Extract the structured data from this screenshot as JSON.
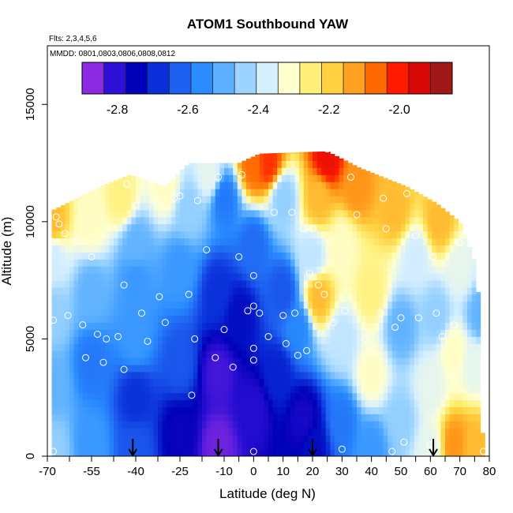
{
  "chart_data": {
    "type": "heatmap",
    "title": "ATOM1 Southbound YAW",
    "subtitle_flights": "Flts: 2,3,4,5,6",
    "subtitle_dates": "MMDD: 0801,0803,0806,0808,0812",
    "xlabel": "Latitude (deg N)",
    "ylabel": "Altitude (m)",
    "xlim": [
      -70,
      80
    ],
    "ylim": [
      0,
      17500
    ],
    "x_ticks": [
      -70,
      -55,
      -40,
      -25,
      -10,
      0,
      10,
      20,
      30,
      40,
      50,
      60,
      70,
      80
    ],
    "x_tick_labels": [
      "-70",
      "-55",
      "-40",
      "-25",
      "-10",
      "0",
      "10",
      "20",
      "30",
      "40",
      "50",
      "60",
      "70",
      "80"
    ],
    "x_minor_ticks": [
      -62.5,
      -47.5,
      -32.5,
      -17.5,
      -5,
      5,
      15,
      25,
      35,
      45,
      55,
      65,
      75
    ],
    "y_ticks": [
      0,
      5000,
      10000,
      15000
    ],
    "y_tick_labels": [
      "0",
      "5000",
      "10000",
      "15000"
    ],
    "colorbar": {
      "range": [
        -2.9,
        -1.85
      ],
      "ticks": [
        -2.8,
        -2.6,
        -2.4,
        -2.2,
        -2.0
      ],
      "tick_labels": [
        "-2.8",
        "-2.6",
        "-2.4",
        "-2.2",
        "-2.0"
      ],
      "colors": [
        "#8a2be2",
        "#2e10d6",
        "#0000b8",
        "#0a2fd9",
        "#1e60f0",
        "#2a8cff",
        "#5cb0ff",
        "#9cd4ff",
        "#d6efff",
        "#ffffd0",
        "#fff07a",
        "#ffd040",
        "#ffa020",
        "#ff6a00",
        "#ff1a00",
        "#d80808",
        "#a01818"
      ]
    },
    "grid": false,
    "descent_markers_lat": [
      -41,
      -12,
      20,
      61
    ],
    "coverage": [
      {
        "lat": -68,
        "top": 10500
      },
      {
        "lat": -60,
        "top": 11000
      },
      {
        "lat": -52,
        "top": 11500
      },
      {
        "lat": -42,
        "top": 12000
      },
      {
        "lat": -30,
        "top": 11500
      },
      {
        "lat": -22,
        "top": 12500
      },
      {
        "lat": -5,
        "top": 12500
      },
      {
        "lat": 2,
        "top": 12900
      },
      {
        "lat": 25,
        "top": 13000
      },
      {
        "lat": 36,
        "top": 12300
      },
      {
        "lat": 52,
        "top": 11500
      },
      {
        "lat": 62,
        "top": 10800
      },
      {
        "lat": 70,
        "top": 10000
      },
      {
        "lat": 76,
        "top": 8000
      },
      {
        "lat": 78,
        "top": 0
      }
    ],
    "field_anchors": [
      {
        "lat": -68,
        "alt": 300,
        "value": -2.45
      },
      {
        "lat": -68,
        "alt": 3000,
        "value": -2.5
      },
      {
        "lat": -68,
        "alt": 6000,
        "value": -2.45
      },
      {
        "lat": -68,
        "alt": 8500,
        "value": -2.38
      },
      {
        "lat": -68,
        "alt": 10000,
        "value": -2.15
      },
      {
        "lat": -55,
        "alt": 500,
        "value": -2.55
      },
      {
        "lat": -55,
        "alt": 4000,
        "value": -2.6
      },
      {
        "lat": -55,
        "alt": 7000,
        "value": -2.5
      },
      {
        "lat": -55,
        "alt": 10000,
        "value": -2.3
      },
      {
        "lat": -45,
        "alt": 11000,
        "value": -2.25
      },
      {
        "lat": -40,
        "alt": 300,
        "value": -2.65
      },
      {
        "lat": -40,
        "alt": 2500,
        "value": -2.7
      },
      {
        "lat": -40,
        "alt": 5000,
        "value": -2.55
      },
      {
        "lat": -40,
        "alt": 7500,
        "value": -2.55
      },
      {
        "lat": -40,
        "alt": 9000,
        "value": -2.5
      },
      {
        "lat": -30,
        "alt": 11500,
        "value": -2.3
      },
      {
        "lat": -25,
        "alt": 1000,
        "value": -2.78
      },
      {
        "lat": -25,
        "alt": 4000,
        "value": -2.65
      },
      {
        "lat": -25,
        "alt": 8000,
        "value": -2.55
      },
      {
        "lat": -22,
        "alt": 10500,
        "value": -2.45
      },
      {
        "lat": -15,
        "alt": 12000,
        "value": -2.35
      },
      {
        "lat": -12,
        "alt": 400,
        "value": -2.88
      },
      {
        "lat": -12,
        "alt": 3500,
        "value": -2.85
      },
      {
        "lat": -12,
        "alt": 7000,
        "value": -2.7
      },
      {
        "lat": -10,
        "alt": 11000,
        "value": -2.6
      },
      {
        "lat": -5,
        "alt": 6000,
        "value": -2.75
      },
      {
        "lat": 0,
        "alt": 2000,
        "value": -2.82
      },
      {
        "lat": 0,
        "alt": 9000,
        "value": -2.62
      },
      {
        "lat": 0,
        "alt": 12500,
        "value": -2.05
      },
      {
        "lat": 5,
        "alt": 12500,
        "value": -2.0
      },
      {
        "lat": 8,
        "alt": 3500,
        "value": -2.72
      },
      {
        "lat": 10,
        "alt": 7000,
        "value": -2.65
      },
      {
        "lat": 10,
        "alt": 11000,
        "value": -2.45
      },
      {
        "lat": 15,
        "alt": 5500,
        "value": -2.58
      },
      {
        "lat": 17,
        "alt": 1500,
        "value": -2.8
      },
      {
        "lat": 20,
        "alt": 500,
        "value": -2.75
      },
      {
        "lat": 20,
        "alt": 8500,
        "value": -2.4
      },
      {
        "lat": 22,
        "alt": 11000,
        "value": -2.15
      },
      {
        "lat": 22,
        "alt": 6800,
        "value": -2.15
      },
      {
        "lat": 25,
        "alt": 12700,
        "value": -1.95
      },
      {
        "lat": 30,
        "alt": 1500,
        "value": -2.6
      },
      {
        "lat": 30,
        "alt": 5000,
        "value": -2.4
      },
      {
        "lat": 30,
        "alt": 9000,
        "value": -2.3
      },
      {
        "lat": 35,
        "alt": 11500,
        "value": -2.1
      },
      {
        "lat": 40,
        "alt": 300,
        "value": -2.55
      },
      {
        "lat": 40,
        "alt": 3500,
        "value": -2.3
      },
      {
        "lat": 40,
        "alt": 7000,
        "value": -2.25
      },
      {
        "lat": 48,
        "alt": 10500,
        "value": -2.15
      },
      {
        "lat": 50,
        "alt": 1500,
        "value": -2.45
      },
      {
        "lat": 50,
        "alt": 5500,
        "value": -2.5
      },
      {
        "lat": 55,
        "alt": 8500,
        "value": -2.38
      },
      {
        "lat": 60,
        "alt": 300,
        "value": -2.35
      },
      {
        "lat": 60,
        "alt": 3000,
        "value": -2.35
      },
      {
        "lat": 62,
        "alt": 6000,
        "value": -2.45
      },
      {
        "lat": 63,
        "alt": 10000,
        "value": -2.15
      },
      {
        "lat": 68,
        "alt": 500,
        "value": -2.1
      },
      {
        "lat": 68,
        "alt": 4500,
        "value": -2.3
      },
      {
        "lat": 70,
        "alt": 8000,
        "value": -2.35
      },
      {
        "lat": 75,
        "alt": 300,
        "value": -2.15
      },
      {
        "lat": 75,
        "alt": 4000,
        "value": -2.35
      },
      {
        "lat": 77,
        "alt": 6000,
        "value": -2.5
      }
    ],
    "observation_points": [
      {
        "lat": -68,
        "alt": 200
      },
      {
        "lat": -68,
        "alt": 5800
      },
      {
        "lat": -67,
        "alt": 10200
      },
      {
        "lat": -66,
        "alt": 9900
      },
      {
        "lat": -64,
        "alt": 9500
      },
      {
        "lat": -63,
        "alt": 6000
      },
      {
        "lat": -60,
        "alt": 9200
      },
      {
        "lat": -58,
        "alt": 5600
      },
      {
        "lat": -57,
        "alt": 4200
      },
      {
        "lat": -55,
        "alt": 8500
      },
      {
        "lat": -53,
        "alt": 5200
      },
      {
        "lat": -51,
        "alt": 4000
      },
      {
        "lat": -50,
        "alt": 5000
      },
      {
        "lat": -46,
        "alt": 5100
      },
      {
        "lat": -44,
        "alt": 7300
      },
      {
        "lat": -44,
        "alt": 3700
      },
      {
        "lat": -43,
        "alt": 11600
      },
      {
        "lat": -40,
        "alt": 10700
      },
      {
        "lat": -38,
        "alt": 6100
      },
      {
        "lat": -36,
        "alt": 4900
      },
      {
        "lat": -33,
        "alt": 10800
      },
      {
        "lat": -32,
        "alt": 6800
      },
      {
        "lat": -30,
        "alt": 5700
      },
      {
        "lat": -27,
        "alt": 11000
      },
      {
        "lat": -25,
        "alt": 11100
      },
      {
        "lat": -22,
        "alt": 6900
      },
      {
        "lat": -21,
        "alt": 2600
      },
      {
        "lat": -20,
        "alt": 5000
      },
      {
        "lat": -19,
        "alt": 10900
      },
      {
        "lat": -16,
        "alt": 8800
      },
      {
        "lat": -13,
        "alt": 4200
      },
      {
        "lat": -12,
        "alt": 11900
      },
      {
        "lat": -10,
        "alt": 5400
      },
      {
        "lat": -7,
        "alt": 3800
      },
      {
        "lat": -5,
        "alt": 8500
      },
      {
        "lat": -4,
        "alt": 12000
      },
      {
        "lat": -2,
        "alt": 6200
      },
      {
        "lat": 0,
        "alt": 7700
      },
      {
        "lat": 0,
        "alt": 6400
      },
      {
        "lat": 0,
        "alt": 4600
      },
      {
        "lat": 0,
        "alt": 4100
      },
      {
        "lat": 0,
        "alt": 200
      },
      {
        "lat": 2,
        "alt": 6100
      },
      {
        "lat": 5,
        "alt": 5100
      },
      {
        "lat": 7,
        "alt": 10400
      },
      {
        "lat": 10,
        "alt": 6000
      },
      {
        "lat": 11,
        "alt": 4800
      },
      {
        "lat": 13,
        "alt": 10400
      },
      {
        "lat": 14,
        "alt": 6100
      },
      {
        "lat": 15,
        "alt": 4300
      },
      {
        "lat": 17,
        "alt": 9700
      },
      {
        "lat": 18,
        "alt": 4500
      },
      {
        "lat": 19,
        "alt": 7800
      },
      {
        "lat": 20,
        "alt": 9700
      },
      {
        "lat": 22,
        "alt": 7300
      },
      {
        "lat": 24,
        "alt": 6900
      },
      {
        "lat": 25,
        "alt": 13100
      },
      {
        "lat": 27,
        "alt": 5700
      },
      {
        "lat": 30,
        "alt": 300
      },
      {
        "lat": 31,
        "alt": 6200
      },
      {
        "lat": 33,
        "alt": 11900
      },
      {
        "lat": 35,
        "alt": 10300
      },
      {
        "lat": 38,
        "alt": 5000
      },
      {
        "lat": 40,
        "alt": 4400
      },
      {
        "lat": 43,
        "alt": 6100
      },
      {
        "lat": 44,
        "alt": 11000
      },
      {
        "lat": 45,
        "alt": 9700
      },
      {
        "lat": 47,
        "alt": 200
      },
      {
        "lat": 48,
        "alt": 5500
      },
      {
        "lat": 50,
        "alt": 5900
      },
      {
        "lat": 51,
        "alt": 600
      },
      {
        "lat": 52,
        "alt": 11200
      },
      {
        "lat": 55,
        "alt": 9400
      },
      {
        "lat": 56,
        "alt": 5900
      },
      {
        "lat": 60,
        "alt": 500
      },
      {
        "lat": 61,
        "alt": 8500
      },
      {
        "lat": 62,
        "alt": 6100
      },
      {
        "lat": 64,
        "alt": 5100
      },
      {
        "lat": 65,
        "alt": 11100
      },
      {
        "lat": 68,
        "alt": 5600
      },
      {
        "lat": 70,
        "alt": 9100
      },
      {
        "lat": 73,
        "alt": 9900
      },
      {
        "lat": 78,
        "alt": 200
      },
      {
        "lat": 80,
        "alt": 3300
      }
    ]
  }
}
